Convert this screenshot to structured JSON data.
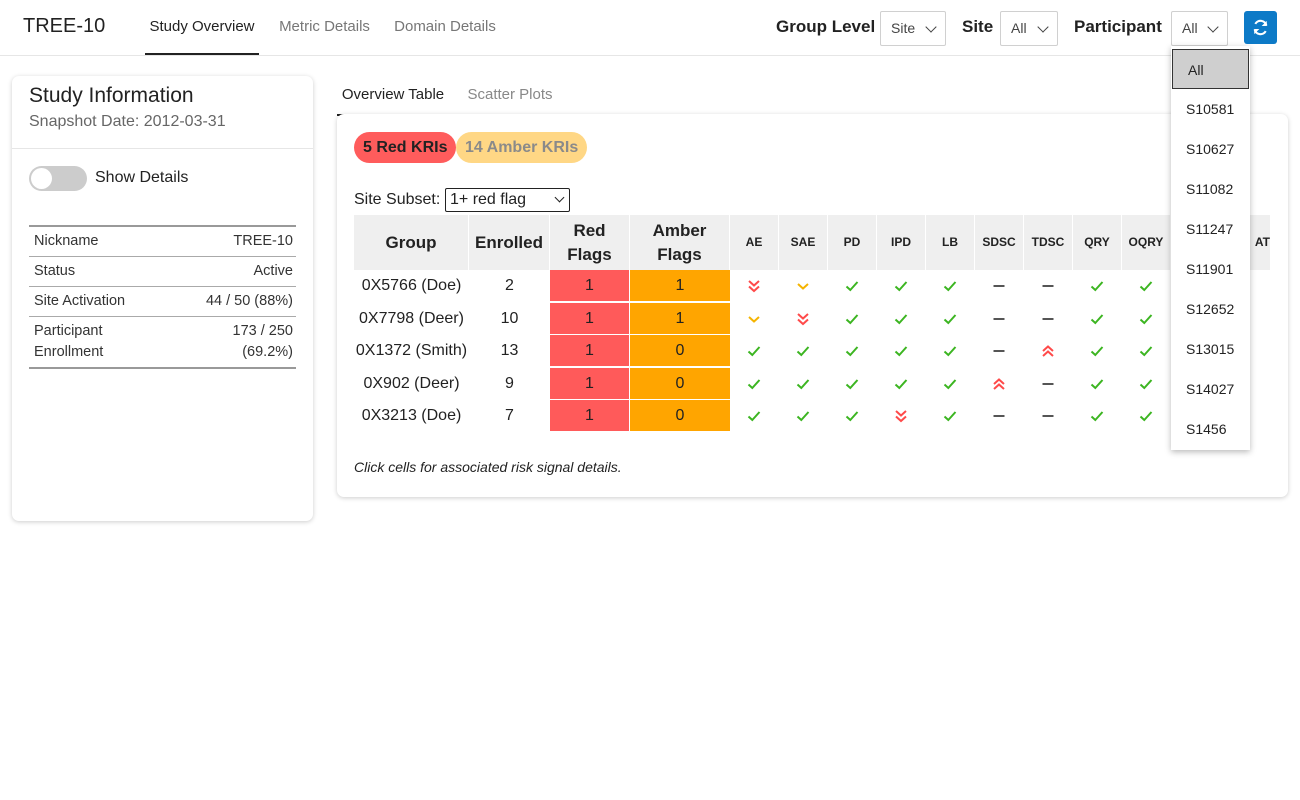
{
  "app": {
    "title": "TREE-10"
  },
  "nav": {
    "tabs": [
      {
        "label": "Study Overview",
        "active": true
      },
      {
        "label": "Metric Details",
        "active": false
      },
      {
        "label": "Domain Details",
        "active": false
      }
    ]
  },
  "controls": {
    "group_level_label": "Group Level",
    "group_level_value": "Site",
    "site_label": "Site",
    "site_value": "All",
    "participant_label": "Participant",
    "participant_value": "All",
    "refresh_icon": "refresh-icon"
  },
  "participant_dropdown": {
    "options": [
      "All",
      "S10581",
      "S10627",
      "S11082",
      "S11247",
      "S11901",
      "S12652",
      "S13015",
      "S14027",
      "S1456"
    ],
    "selected": "All"
  },
  "study_info": {
    "title": "Study Information",
    "snapshot": "Snapshot Date: 2012-03-31",
    "toggle_label": "Show Details",
    "toggle_on": false,
    "rows": [
      {
        "key": "Nickname",
        "value": "TREE-10"
      },
      {
        "key": "Status",
        "value": "Active"
      },
      {
        "key": "Site Activation",
        "value": "44 / 50 (88%)"
      },
      {
        "key_line1": "Participant",
        "key_line2": "Enrollment",
        "value_line1": "173 / 250",
        "value_line2": "(69.2%)"
      }
    ]
  },
  "main": {
    "tabs": [
      {
        "label": "Overview Table",
        "active": true
      },
      {
        "label": "Scatter Plots",
        "active": false
      }
    ],
    "red_badge": "5 Red KRIs",
    "amber_badge": "14 Amber KRIs",
    "subset_label": "Site Subset:",
    "subset_value": "1+ red flag",
    "table": {
      "headers": {
        "group": "Group",
        "enrolled": "Enrolled",
        "red_line1": "Red",
        "red_line2": "Flags",
        "amber_line1": "Amber",
        "amber_line2": "Flags",
        "metrics": [
          "AE",
          "SAE",
          "PD",
          "IPD",
          "LB",
          "SDSC",
          "TDSC",
          "QRY",
          "OQRY"
        ],
        "partial_metric": "AT"
      },
      "rows": [
        {
          "group": "0X5766 (Doe)",
          "enrolled": "2",
          "red": "1",
          "amber": "1",
          "icons": [
            "red-down",
            "amber-down",
            "check",
            "check",
            "check",
            "dash",
            "dash",
            "check",
            "check"
          ]
        },
        {
          "group": "0X7798 (Deer)",
          "enrolled": "10",
          "red": "1",
          "amber": "1",
          "icons": [
            "amber-down",
            "red-down",
            "check",
            "check",
            "check",
            "dash",
            "dash",
            "check",
            "check"
          ]
        },
        {
          "group": "0X1372 (Smith)",
          "enrolled": "13",
          "red": "1",
          "amber": "0",
          "icons": [
            "check",
            "check",
            "check",
            "check",
            "check",
            "dash",
            "red-up",
            "check",
            "check"
          ]
        },
        {
          "group": "0X902 (Deer)",
          "enrolled": "9",
          "red": "1",
          "amber": "0",
          "icons": [
            "check",
            "check",
            "check",
            "check",
            "check",
            "red-up",
            "dash",
            "check",
            "check"
          ]
        },
        {
          "group": "0X3213 (Doe)",
          "enrolled": "7",
          "red": "1",
          "amber": "0",
          "icons": [
            "check",
            "check",
            "check",
            "red-down",
            "check",
            "dash",
            "dash",
            "check",
            "check"
          ]
        }
      ]
    },
    "note": "Click cells for associated risk signal details."
  },
  "colors": {
    "red_flag": "#ff5a5a",
    "amber_flag": "#ffa500",
    "check_green": "#3cb521",
    "signal_red": "#ff4a4a",
    "signal_amber": "#f5b400",
    "accent_blue": "#0d7ac7"
  }
}
